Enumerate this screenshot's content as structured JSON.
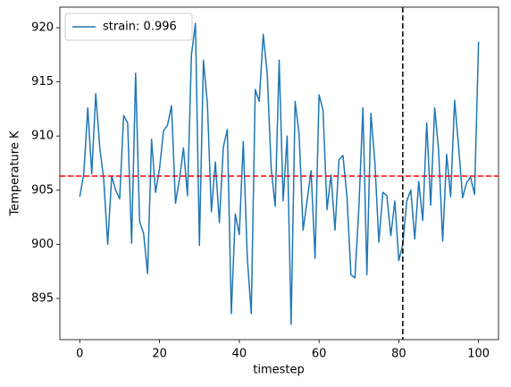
{
  "chart_data": {
    "type": "line",
    "x_label": "timestep",
    "y_label": "Temperature K",
    "x": [
      0,
      1,
      2,
      3,
      4,
      5,
      6,
      7,
      8,
      9,
      10,
      11,
      12,
      13,
      14,
      15,
      16,
      17,
      18,
      19,
      20,
      21,
      22,
      23,
      24,
      25,
      26,
      27,
      28,
      29,
      30,
      31,
      32,
      33,
      34,
      35,
      36,
      37,
      38,
      39,
      40,
      41,
      42,
      43,
      44,
      45,
      46,
      47,
      48,
      49,
      50,
      51,
      52,
      53,
      54,
      55,
      56,
      57,
      58,
      59,
      60,
      61,
      62,
      63,
      64,
      65,
      66,
      67,
      68,
      69,
      70,
      71,
      72,
      73,
      74,
      75,
      76,
      77,
      78,
      79,
      80,
      81,
      82,
      83,
      84,
      85,
      86,
      87,
      88,
      89,
      90,
      91,
      92,
      93,
      94,
      95,
      96,
      97,
      98,
      99,
      100
    ],
    "series": [
      {
        "name": "strain: 0.996",
        "color": "#1f77b4",
        "values": [
          904.4,
          906.5,
          912.6,
          906.5,
          913.9,
          909,
          906,
          900,
          906.3,
          905,
          904.2,
          911.9,
          911.2,
          900.1,
          915.8,
          902.1,
          901,
          897.3,
          909.7,
          904.8,
          907,
          910.5,
          911,
          912.8,
          903.8,
          906,
          908.9,
          904.5,
          917.5,
          920.4,
          899.9,
          917,
          913,
          903,
          907.6,
          902,
          909,
          910.6,
          893.6,
          902.8,
          900.9,
          909.5,
          898.8,
          893.6,
          914.3,
          913.2,
          919.4,
          915.8,
          907,
          903.5,
          917,
          904,
          910,
          892.6,
          913.2,
          910.2,
          901.3,
          904,
          906.8,
          898.7,
          913.8,
          912.4,
          903.2,
          906.4,
          901.3,
          907.8,
          908.2,
          904.4,
          897.2,
          896.9,
          903.5,
          912.6,
          897.2,
          912.1,
          907.6,
          900.2,
          904.8,
          904.5,
          900.8,
          904,
          898.5,
          900,
          904,
          905,
          900.5,
          905.8,
          902.2,
          911.2,
          903.6,
          912.6,
          908.6,
          900.3,
          908.3,
          904.4,
          913.3,
          909,
          904.3,
          905.7,
          906.2,
          904.6,
          918.7
        ]
      }
    ],
    "reference_lines": [
      {
        "orientation": "horizontal",
        "value": 906.3,
        "color": "#ff0000"
      },
      {
        "orientation": "vertical",
        "value": 81,
        "color": "#000000"
      }
    ],
    "xlim": [
      -5,
      105
    ],
    "ylim": [
      891.2,
      921.9
    ],
    "xticks": [
      0,
      20,
      40,
      60,
      80,
      100
    ],
    "yticks": [
      895,
      900,
      905,
      910,
      915,
      920
    ],
    "legend": "upper left"
  }
}
